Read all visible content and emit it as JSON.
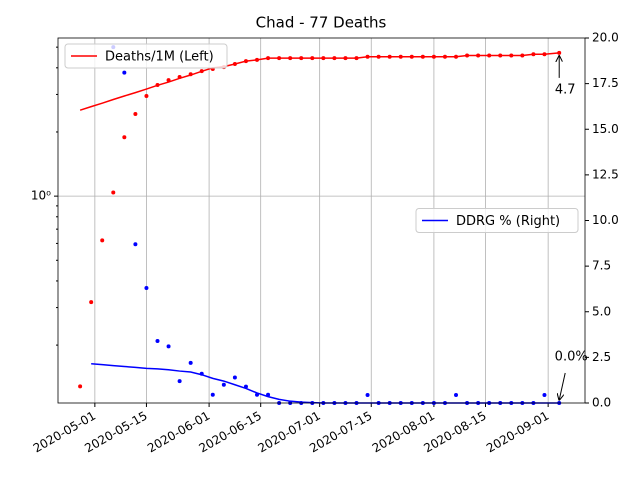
{
  "chart_data": {
    "type": "line",
    "title": "Chad - 77 Deaths",
    "x": [
      "2020-04-27",
      "2020-04-30",
      "2020-05-03",
      "2020-05-06",
      "2020-05-09",
      "2020-05-12",
      "2020-05-15",
      "2020-05-18",
      "2020-05-21",
      "2020-05-24",
      "2020-05-27",
      "2020-05-30",
      "2020-06-02",
      "2020-06-05",
      "2020-06-08",
      "2020-06-11",
      "2020-06-14",
      "2020-06-17",
      "2020-06-20",
      "2020-06-23",
      "2020-06-26",
      "2020-06-29",
      "2020-07-02",
      "2020-07-05",
      "2020-07-08",
      "2020-07-11",
      "2020-07-14",
      "2020-07-17",
      "2020-07-20",
      "2020-07-23",
      "2020-07-26",
      "2020-07-29",
      "2020-08-01",
      "2020-08-04",
      "2020-08-07",
      "2020-08-10",
      "2020-08-13",
      "2020-08-16",
      "2020-08-19",
      "2020-08-22",
      "2020-08-25",
      "2020-08-28",
      "2020-08-31",
      "2020-09-04"
    ],
    "series": [
      {
        "style": "dots",
        "color": "#ff0000",
        "values": [
          0.128,
          0.318,
          0.62,
          1.04,
          1.89,
          2.43,
          2.95,
          3.32,
          3.5,
          3.62,
          3.73,
          3.86,
          3.95,
          4.03,
          4.17,
          4.3,
          4.36,
          4.44,
          4.44,
          4.44,
          4.44,
          4.44,
          4.44,
          4.44,
          4.44,
          4.44,
          4.51,
          4.51,
          4.51,
          4.51,
          4.51,
          4.51,
          4.51,
          4.51,
          4.51,
          4.57,
          4.57,
          4.57,
          4.57,
          4.57,
          4.57,
          4.63,
          4.63,
          4.7
        ]
      },
      {
        "style": "line",
        "name": "Deaths/1M (Left)",
        "color": "#ff0000",
        "values": [
          2.53,
          2.63,
          2.73,
          2.84,
          2.95,
          3.06,
          3.18,
          3.31,
          3.43,
          3.57,
          3.7,
          3.85,
          4.0,
          4.05,
          4.17,
          4.3,
          4.36,
          4.44,
          4.44,
          4.44,
          4.44,
          4.44,
          4.44,
          4.44,
          4.44,
          4.44,
          4.51,
          4.51,
          4.51,
          4.51,
          4.51,
          4.51,
          4.51,
          4.51,
          4.51,
          4.57,
          4.57,
          4.57,
          4.57,
          4.57,
          4.57,
          4.63,
          4.63,
          4.7
        ]
      },
      {
        "style": "dots",
        "color": "#0000ff",
        "axis": "y2",
        "values": [
          null,
          null,
          null,
          19.5,
          18.1,
          8.7,
          6.3,
          3.4,
          3.1,
          1.2,
          2.2,
          1.6,
          0.45,
          1.0,
          1.4,
          0.9,
          0.45,
          0.45,
          0,
          0,
          0,
          0,
          0,
          0,
          0,
          0,
          0.44,
          0,
          0,
          0,
          0,
          0,
          0,
          0,
          0.44,
          0,
          0,
          0,
          0,
          0,
          0,
          0,
          0.44,
          0
        ]
      },
      {
        "style": "line",
        "name": "DDRG % (Right)",
        "color": "#0000ff",
        "axis": "y2",
        "values": [
          null,
          2.15,
          2.1,
          2.05,
          2.0,
          1.95,
          1.9,
          1.87,
          1.82,
          1.75,
          1.7,
          1.55,
          1.35,
          1.2,
          1.0,
          0.8,
          0.55,
          0.35,
          0.2,
          0.1,
          0.05,
          0.02,
          0,
          0,
          0,
          0,
          0,
          0,
          0,
          0,
          0,
          0,
          0,
          0,
          0,
          0,
          0,
          0,
          0,
          0,
          0,
          0,
          0,
          0
        ]
      }
    ],
    "xlim": [
      "2020-04-21",
      "2020-09-11"
    ],
    "xticks": [
      "2020-05-01",
      "2020-05-15",
      "2020-06-01",
      "2020-06-15",
      "2020-07-01",
      "2020-07-15",
      "2020-08-01",
      "2020-08-15",
      "2020-09-01"
    ],
    "ylim": [
      0.107,
      5.52
    ],
    "log_y": true,
    "yticks": [
      {
        "value": 1,
        "label": "10⁰"
      }
    ],
    "y2lim": [
      0,
      20
    ],
    "y2ticks": [
      {
        "value": 0,
        "label": "0.0"
      },
      2.5,
      {
        "value": 5,
        "label": "5.0"
      },
      7.5,
      {
        "value": 10,
        "label": "10.0"
      },
      12.5,
      {
        "value": 15,
        "label": "15.0"
      },
      17.5,
      {
        "value": 20,
        "label": "20.0"
      }
    ],
    "grid": true,
    "legends": [
      "upper left",
      "center right"
    ],
    "annotations": [
      {
        "text": "4.7",
        "x": "2020-09-04",
        "y": 4.7
      },
      {
        "text": "0.0%",
        "x": "2020-09-04",
        "y": 0,
        "axis": "y2"
      }
    ]
  }
}
